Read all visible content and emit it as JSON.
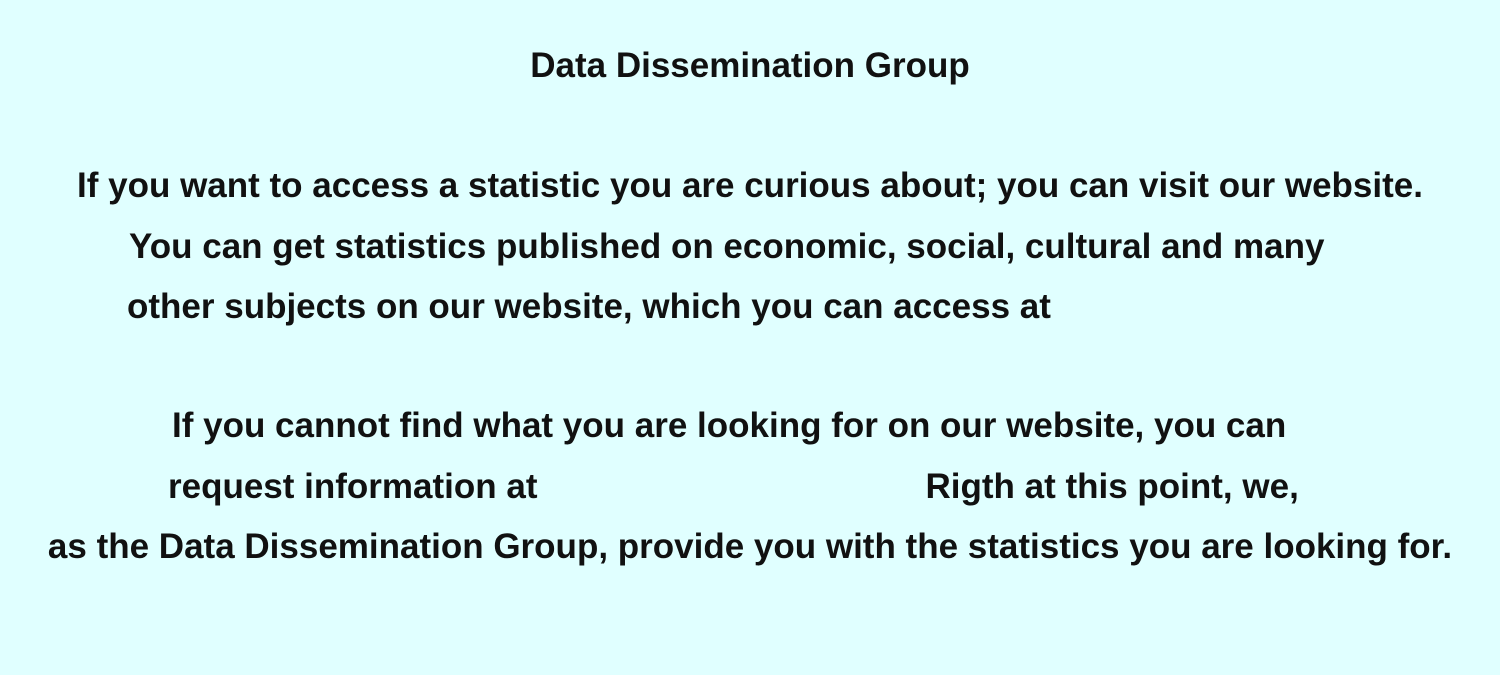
{
  "document": {
    "title": "Data Dissemination Group",
    "paragraph1": [
      "If you want to access a statistic you are curious about; you can visit our website.",
      "You can get statistics published on economic, social, cultural and many",
      "other subjects on our website, which you can access at"
    ],
    "paragraph2": {
      "line1": "If you cannot find what you are looking for on our website, you can",
      "line2_start": "request information at",
      "line2_end": "Rigth at this point, we,",
      "line3": "as the Data Dissemination Group, provide you with the statistics you are looking for."
    }
  }
}
